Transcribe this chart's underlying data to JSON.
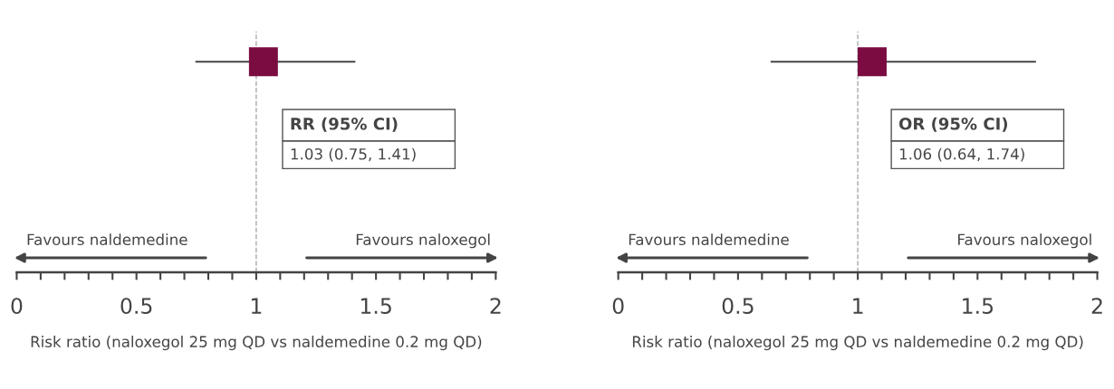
{
  "chart_data": [
    {
      "type": "scatter",
      "orientation": "horizontal",
      "categories": [
        null
      ],
      "values": [
        1.03
      ],
      "errors": [
        [
          0.75,
          1.41
        ]
      ],
      "color": "#7b0c42",
      "marker": "square",
      "xlim": [
        0,
        2
      ],
      "xticks": [
        0,
        {
          "value": 0.1,
          "label": null
        },
        {
          "value": 0.2,
          "label": null
        },
        {
          "value": 0.3,
          "label": null
        },
        {
          "value": 0.4,
          "label": null
        },
        0.5,
        {
          "value": 0.6,
          "label": null
        },
        {
          "value": 0.7,
          "label": null
        },
        {
          "value": 0.8,
          "label": null
        },
        {
          "value": 0.9,
          "label": null
        },
        1,
        {
          "value": 1.1,
          "label": null
        },
        {
          "value": 1.2,
          "label": null
        },
        {
          "value": 1.3,
          "label": null
        },
        {
          "value": 1.4,
          "label": null
        },
        1.5,
        {
          "value": 1.6,
          "label": null
        },
        {
          "value": 1.7,
          "label": null
        },
        {
          "value": 1.8,
          "label": null
        },
        {
          "value": 1.9,
          "label": null
        },
        2
      ],
      "xlabel": "Risk ratio (naloxegol 25 mg QD vs naldemedine 0.2 mg QD)",
      "tick_labels": "x",
      "grid": false,
      "legend": false,
      "ref_lines": [
        {
          "axis": "x",
          "value": 1,
          "color": "#aaaaaa",
          "line_style": "dashed"
        }
      ],
      "annotations": [
        "RR (95% CI)",
        "1.03 (0.75, 1.41)",
        "Favours naldemedine",
        "Favours naloxegol"
      ]
    },
    {
      "type": "scatter",
      "orientation": "horizontal",
      "categories": [
        null
      ],
      "values": [
        1.06
      ],
      "errors": [
        [
          0.64,
          1.74
        ]
      ],
      "color": "#7b0c42",
      "marker": "square",
      "xlim": [
        0,
        2
      ],
      "xticks": [
        0,
        {
          "value": 0.1,
          "label": null
        },
        {
          "value": 0.2,
          "label": null
        },
        {
          "value": 0.3,
          "label": null
        },
        {
          "value": 0.4,
          "label": null
        },
        0.5,
        {
          "value": 0.6,
          "label": null
        },
        {
          "value": 0.7,
          "label": null
        },
        {
          "value": 0.8,
          "label": null
        },
        {
          "value": 0.9,
          "label": null
        },
        1,
        {
          "value": 1.1,
          "label": null
        },
        {
          "value": 1.2,
          "label": null
        },
        {
          "value": 1.3,
          "label": null
        },
        {
          "value": 1.4,
          "label": null
        },
        1.5,
        {
          "value": 1.6,
          "label": null
        },
        {
          "value": 1.7,
          "label": null
        },
        {
          "value": 1.8,
          "label": null
        },
        {
          "value": 1.9,
          "label": null
        },
        2
      ],
      "xlabel": "Risk ratio (naloxegol 25 mg QD vs naldemedine 0.2 mg QD)",
      "tick_labels": "x",
      "grid": false,
      "legend": false,
      "ref_lines": [
        {
          "axis": "x",
          "value": 1,
          "color": "#aaaaaa",
          "line_style": "dashed"
        }
      ],
      "annotations": [
        "OR (95% CI)",
        "1.06 (0.64, 1.74)",
        "Favours naldemedine",
        "Favours naloxegol"
      ]
    }
  ]
}
